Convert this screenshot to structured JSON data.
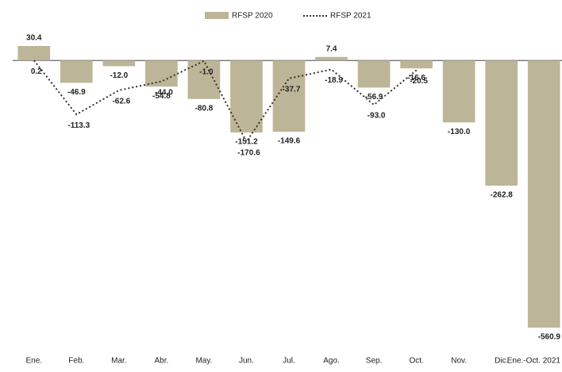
{
  "chart_data": {
    "type": "bar",
    "categories": [
      "Ene.",
      "Feb.",
      "Mar.",
      "Abr.",
      "May.",
      "Jun.",
      "Jul.",
      "Ago.",
      "Sep.",
      "Oct.",
      "Nov.",
      "Dic.",
      "Ene.-Oct. 2021"
    ],
    "series": [
      {
        "name": "RFSP 2020",
        "type": "bar",
        "color": "#bdb597",
        "values": [
          30.4,
          -46.9,
          -12.0,
          -54.8,
          -80.8,
          -151.2,
          -149.6,
          7.4,
          -56.9,
          -16.6,
          -130.0,
          -262.8,
          -560.9
        ],
        "value_labels": [
          "30.4",
          "-46.9",
          "-12.0",
          "-54.8",
          "-80.8",
          "-151.2",
          "-149.6",
          "7.4",
          "-56.9",
          "-16.6",
          "-130.0",
          "-262.8",
          "-560.9"
        ]
      },
      {
        "name": "RFSP 2021",
        "type": "line",
        "color": "#3b2e28",
        "values": [
          0.2,
          -113.3,
          -62.6,
          -44.0,
          -1.0,
          -170.6,
          -37.7,
          -18.9,
          -93.0,
          -20.5,
          null,
          null,
          null
        ],
        "value_labels": [
          "0.2",
          "-113.3",
          "-62.6",
          "-44.0",
          "-1.0",
          "-170.6",
          "-37.7",
          "-18.9",
          "-93.0",
          "-20.5",
          null,
          null,
          null
        ]
      }
    ],
    "legend": "top"
  }
}
